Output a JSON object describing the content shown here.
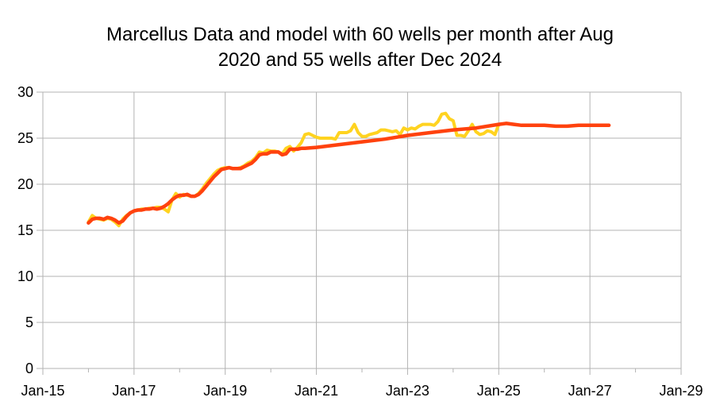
{
  "chart_data": {
    "type": "line",
    "title_line1": "Marcellus Data and model with 60 wells per month after Aug",
    "title_line2": "2020 and 55 wells after Dec 2024",
    "xlabel": "",
    "ylabel": "",
    "ylim": [
      0,
      30
    ],
    "yticks": [
      0,
      5,
      10,
      15,
      20,
      25,
      30
    ],
    "xlim": [
      "2015-01",
      "2029-01"
    ],
    "xticks": [
      "Jan-15",
      "Jan-17",
      "Jan-19",
      "Jan-21",
      "Jan-23",
      "Jan-25",
      "Jan-27",
      "Jan-29"
    ],
    "grid": true,
    "legend": "none",
    "series": [
      {
        "color": "#ffd320",
        "points": [
          [
            "2016-01",
            15.9
          ],
          [
            "2016-02",
            16.6
          ],
          [
            "2016-03",
            16.3
          ],
          [
            "2016-04",
            16.2
          ],
          [
            "2016-05",
            16.1
          ],
          [
            "2016-06",
            16.3
          ],
          [
            "2016-07",
            16.2
          ],
          [
            "2016-08",
            15.9
          ],
          [
            "2016-09",
            15.5
          ],
          [
            "2016-10",
            16.2
          ],
          [
            "2016-11",
            16.6
          ],
          [
            "2016-12",
            16.9
          ],
          [
            "2017-01",
            17.1
          ],
          [
            "2017-02",
            17.2
          ],
          [
            "2017-03",
            17.3
          ],
          [
            "2017-04",
            17.3
          ],
          [
            "2017-05",
            17.4
          ],
          [
            "2017-06",
            17.4
          ],
          [
            "2017-07",
            17.5
          ],
          [
            "2017-08",
            17.5
          ],
          [
            "2017-09",
            17.3
          ],
          [
            "2017-10",
            17.0
          ],
          [
            "2017-11",
            18.3
          ],
          [
            "2017-12",
            19.0
          ],
          [
            "2018-01",
            18.6
          ],
          [
            "2018-02",
            18.9
          ],
          [
            "2018-03",
            18.8
          ],
          [
            "2018-04",
            18.7
          ],
          [
            "2018-05",
            18.7
          ],
          [
            "2018-06",
            19.0
          ],
          [
            "2018-07",
            19.5
          ],
          [
            "2018-08",
            20.1
          ],
          [
            "2018-09",
            20.6
          ],
          [
            "2018-10",
            21.1
          ],
          [
            "2018-11",
            21.5
          ],
          [
            "2018-12",
            21.7
          ],
          [
            "2019-01",
            21.8
          ],
          [
            "2019-02",
            21.8
          ],
          [
            "2019-03",
            21.7
          ],
          [
            "2019-04",
            21.7
          ],
          [
            "2019-05",
            21.8
          ],
          [
            "2019-06",
            22.0
          ],
          [
            "2019-07",
            22.3
          ],
          [
            "2019-08",
            22.5
          ],
          [
            "2019-09",
            22.9
          ],
          [
            "2019-10",
            23.5
          ],
          [
            "2019-11",
            23.4
          ],
          [
            "2019-12",
            23.7
          ],
          [
            "2020-01",
            23.6
          ],
          [
            "2020-02",
            23.6
          ],
          [
            "2020-03",
            23.5
          ],
          [
            "2020-04",
            23.3
          ],
          [
            "2020-05",
            23.9
          ],
          [
            "2020-06",
            24.1
          ],
          [
            "2020-07",
            23.6
          ],
          [
            "2020-08",
            24.0
          ],
          [
            "2020-09",
            24.5
          ],
          [
            "2020-10",
            25.4
          ],
          [
            "2020-11",
            25.5
          ],
          [
            "2020-12",
            25.3
          ],
          [
            "2021-01",
            25.1
          ],
          [
            "2021-02",
            25.0
          ],
          [
            "2021-03",
            25.0
          ],
          [
            "2021-04",
            25.0
          ],
          [
            "2021-05",
            25.0
          ],
          [
            "2021-06",
            24.9
          ],
          [
            "2021-07",
            25.6
          ],
          [
            "2021-08",
            25.6
          ],
          [
            "2021-09",
            25.6
          ],
          [
            "2021-10",
            25.8
          ],
          [
            "2021-11",
            26.5
          ],
          [
            "2021-12",
            25.6
          ],
          [
            "2022-01",
            25.2
          ],
          [
            "2022-02",
            25.2
          ],
          [
            "2022-03",
            25.4
          ],
          [
            "2022-04",
            25.5
          ],
          [
            "2022-05",
            25.6
          ],
          [
            "2022-06",
            25.9
          ],
          [
            "2022-07",
            25.9
          ],
          [
            "2022-08",
            25.8
          ],
          [
            "2022-09",
            25.7
          ],
          [
            "2022-10",
            25.8
          ],
          [
            "2022-11",
            25.4
          ],
          [
            "2022-12",
            26.1
          ],
          [
            "2023-01",
            25.9
          ],
          [
            "2023-02",
            26.1
          ],
          [
            "2023-03",
            26.0
          ],
          [
            "2023-04",
            26.3
          ],
          [
            "2023-05",
            26.5
          ],
          [
            "2023-06",
            26.5
          ],
          [
            "2023-07",
            26.5
          ],
          [
            "2023-08",
            26.4
          ],
          [
            "2023-09",
            26.8
          ],
          [
            "2023-10",
            27.6
          ],
          [
            "2023-11",
            27.7
          ],
          [
            "2023-12",
            27.1
          ],
          [
            "2024-01",
            26.9
          ],
          [
            "2024-02",
            25.3
          ],
          [
            "2024-03",
            25.3
          ],
          [
            "2024-04",
            25.2
          ],
          [
            "2024-05",
            25.8
          ],
          [
            "2024-06",
            26.5
          ],
          [
            "2024-07",
            25.7
          ],
          [
            "2024-08",
            25.4
          ],
          [
            "2024-09",
            25.5
          ],
          [
            "2024-10",
            25.8
          ],
          [
            "2024-11",
            25.7
          ],
          [
            "2024-12",
            25.4
          ],
          [
            "2025-01",
            26.5
          ]
        ]
      },
      {
        "color": "#ff420e",
        "points": [
          [
            "2016-01",
            15.8
          ],
          [
            "2016-02",
            16.2
          ],
          [
            "2016-03",
            16.3
          ],
          [
            "2016-04",
            16.3
          ],
          [
            "2016-05",
            16.2
          ],
          [
            "2016-06",
            16.4
          ],
          [
            "2016-07",
            16.3
          ],
          [
            "2016-08",
            16.1
          ],
          [
            "2016-09",
            15.8
          ],
          [
            "2016-10",
            16.0
          ],
          [
            "2016-11",
            16.5
          ],
          [
            "2016-12",
            16.9
          ],
          [
            "2017-01",
            17.1
          ],
          [
            "2017-02",
            17.2
          ],
          [
            "2017-03",
            17.2
          ],
          [
            "2017-04",
            17.3
          ],
          [
            "2017-05",
            17.3
          ],
          [
            "2017-06",
            17.4
          ],
          [
            "2017-07",
            17.3
          ],
          [
            "2017-08",
            17.4
          ],
          [
            "2017-09",
            17.6
          ],
          [
            "2017-10",
            17.9
          ],
          [
            "2017-11",
            18.3
          ],
          [
            "2017-12",
            18.6
          ],
          [
            "2018-01",
            18.8
          ],
          [
            "2018-02",
            18.8
          ],
          [
            "2018-03",
            18.9
          ],
          [
            "2018-04",
            18.7
          ],
          [
            "2018-05",
            18.7
          ],
          [
            "2018-06",
            18.9
          ],
          [
            "2018-07",
            19.3
          ],
          [
            "2018-08",
            19.8
          ],
          [
            "2018-09",
            20.3
          ],
          [
            "2018-10",
            20.8
          ],
          [
            "2018-11",
            21.2
          ],
          [
            "2018-12",
            21.6
          ],
          [
            "2019-01",
            21.7
          ],
          [
            "2019-02",
            21.8
          ],
          [
            "2019-03",
            21.7
          ],
          [
            "2019-04",
            21.7
          ],
          [
            "2019-05",
            21.7
          ],
          [
            "2019-06",
            21.9
          ],
          [
            "2019-07",
            22.1
          ],
          [
            "2019-08",
            22.3
          ],
          [
            "2019-09",
            22.7
          ],
          [
            "2019-10",
            23.2
          ],
          [
            "2019-11",
            23.3
          ],
          [
            "2019-12",
            23.3
          ],
          [
            "2020-01",
            23.5
          ],
          [
            "2020-02",
            23.5
          ],
          [
            "2020-03",
            23.5
          ],
          [
            "2020-04",
            23.2
          ],
          [
            "2020-05",
            23.3
          ],
          [
            "2020-06",
            23.8
          ],
          [
            "2020-07",
            23.8
          ],
          [
            "2020-08",
            23.8
          ],
          [
            "2020-09",
            23.9
          ],
          [
            "2020-10",
            23.9
          ],
          [
            "2021-01",
            24.0
          ],
          [
            "2021-07",
            24.3
          ],
          [
            "2022-01",
            24.6
          ],
          [
            "2022-07",
            24.9
          ],
          [
            "2023-01",
            25.3
          ],
          [
            "2023-07",
            25.6
          ],
          [
            "2024-01",
            25.9
          ],
          [
            "2024-07",
            26.1
          ],
          [
            "2025-01",
            26.5
          ],
          [
            "2025-03",
            26.6
          ],
          [
            "2025-05",
            26.5
          ],
          [
            "2025-07",
            26.4
          ],
          [
            "2026-01",
            26.4
          ],
          [
            "2026-04",
            26.3
          ],
          [
            "2026-07",
            26.3
          ],
          [
            "2026-10",
            26.4
          ],
          [
            "2027-04",
            26.4
          ],
          [
            "2027-06",
            26.4
          ]
        ]
      }
    ]
  }
}
